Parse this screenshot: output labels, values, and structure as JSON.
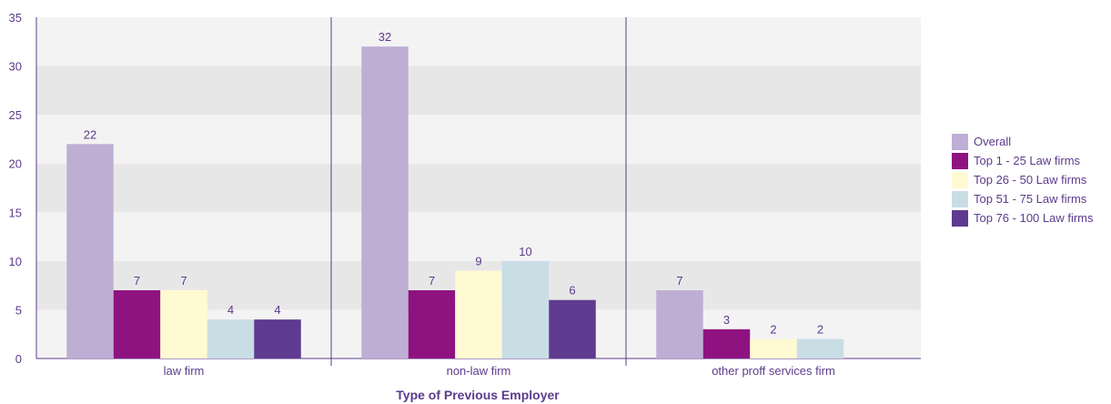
{
  "chart_data": {
    "type": "bar",
    "title": "",
    "xlabel": "Type of Previous Employer",
    "ylabel": "",
    "ylim": [
      0,
      35
    ],
    "yticks": [
      0,
      5,
      10,
      15,
      20,
      25,
      30,
      35
    ],
    "grid": "alternating horizontal bands",
    "legend_position": "right",
    "categories": [
      "law firm",
      "non-law firm",
      "other proff services firm"
    ],
    "series": [
      {
        "name": "Overall",
        "color": "#bfaed4",
        "values": [
          22,
          32,
          7
        ]
      },
      {
        "name": "Top 1 - 25 Law firms",
        "color": "#8e1380",
        "values": [
          7,
          7,
          3
        ]
      },
      {
        "name": "Top 26 - 50 Law firms",
        "color": "#fffad2",
        "values": [
          7,
          9,
          2
        ]
      },
      {
        "name": "Top 51 - 75 Law firms",
        "color": "#c9dde5",
        "values": [
          4,
          10,
          2
        ]
      },
      {
        "name": "Top 76 - 100 Law firms",
        "color": "#5f3b8f",
        "values": [
          4,
          6,
          null
        ]
      }
    ]
  }
}
